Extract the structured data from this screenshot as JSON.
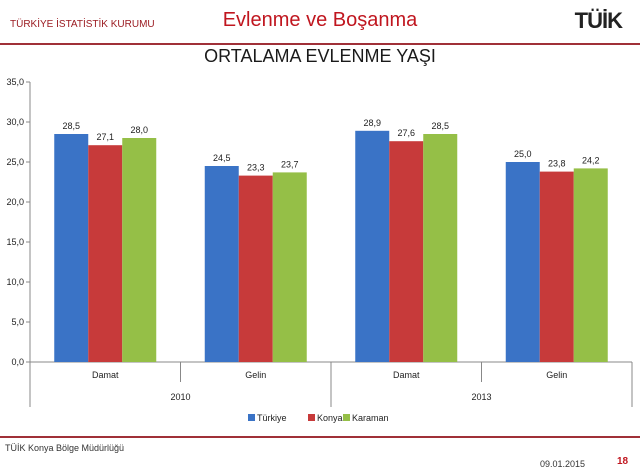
{
  "header": {
    "org": "TÜRKİYE İSTATİSTİK KURUMU",
    "subject": "Evlenme ve Boşanma",
    "logo": "TÜİK"
  },
  "footer": {
    "office": "TÜİK Konya Bölge Müdürlüğü",
    "date": "09.01.2015",
    "page": "18"
  },
  "chart_data": {
    "type": "bar",
    "title": "ORTALAMA EVLENME YAŞI",
    "categories": [
      "Damat",
      "Gelin",
      "Damat",
      "Gelin"
    ],
    "groups": [
      {
        "label": "2010",
        "span": 2
      },
      {
        "label": "2013",
        "span": 2
      }
    ],
    "series": [
      {
        "name": "Türkiye",
        "color": "#3a73c6",
        "values": [
          28.5,
          24.5,
          28.9,
          25.0
        ]
      },
      {
        "name": "Konya",
        "color": "#c73a3a",
        "values": [
          27.1,
          23.3,
          27.6,
          23.8
        ]
      },
      {
        "name": "Karaman",
        "color": "#95bf47",
        "values": [
          28.0,
          23.7,
          28.5,
          24.2
        ]
      }
    ],
    "ylim": [
      0,
      35
    ],
    "yticks": [
      "0,0",
      "5,0",
      "10,0",
      "15,0",
      "20,0",
      "25,0",
      "30,0",
      "35,0"
    ],
    "legend": "bottom",
    "grid": false
  }
}
